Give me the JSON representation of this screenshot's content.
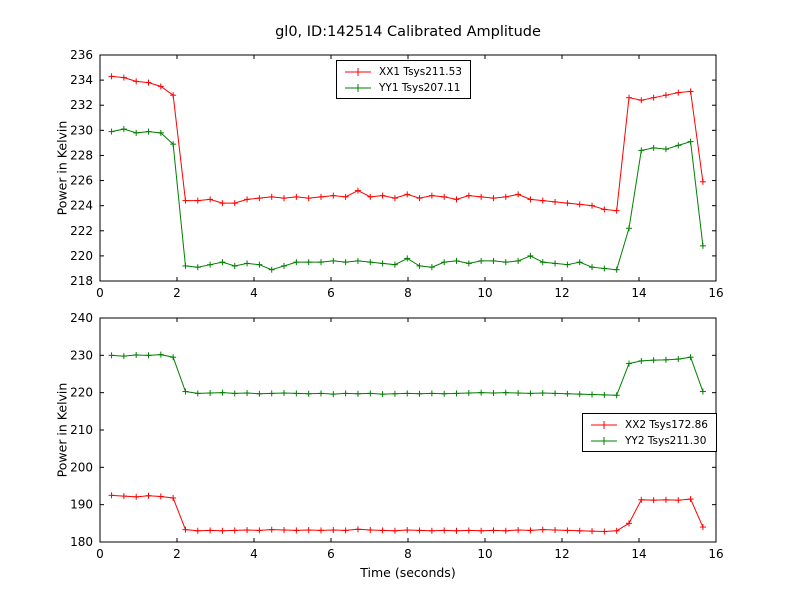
{
  "title": "gl0, ID:142514 Calibrated Amplitude",
  "colors": {
    "xx": "#ff0000",
    "yy": "#007f00",
    "axis": "#000000",
    "background": "#ffffff"
  },
  "chart_data": [
    {
      "type": "line",
      "subplot": "top",
      "ylabel": "Power in Kelvin",
      "xlabel": "",
      "xlim": [
        0,
        16
      ],
      "ylim": [
        218,
        236
      ],
      "xticks": [
        0,
        2,
        4,
        6,
        8,
        10,
        12,
        14,
        16
      ],
      "yticks": [
        218,
        220,
        222,
        224,
        226,
        228,
        230,
        232,
        234,
        236
      ],
      "legend_position": "upper center",
      "marker": "+",
      "grid": false,
      "x": [
        0.3,
        0.62,
        0.94,
        1.26,
        1.58,
        1.9,
        2.22,
        2.54,
        2.86,
        3.18,
        3.5,
        3.82,
        4.14,
        4.46,
        4.78,
        5.1,
        5.42,
        5.74,
        6.06,
        6.38,
        6.7,
        7.02,
        7.34,
        7.66,
        7.98,
        8.3,
        8.62,
        8.94,
        9.26,
        9.58,
        9.9,
        10.22,
        10.54,
        10.86,
        11.18,
        11.5,
        11.82,
        12.14,
        12.46,
        12.78,
        13.1,
        13.42,
        13.74,
        14.06,
        14.38,
        14.7,
        15.02,
        15.34,
        15.66
      ],
      "series": [
        {
          "name": "XX1 Tsys211.53",
          "color": "#ff0000",
          "values": [
            234.3,
            234.2,
            233.9,
            233.8,
            233.5,
            232.8,
            224.4,
            224.4,
            224.5,
            224.2,
            224.2,
            224.5,
            224.6,
            224.7,
            224.6,
            224.7,
            224.6,
            224.7,
            224.8,
            224.7,
            225.2,
            224.7,
            224.8,
            224.6,
            224.9,
            224.6,
            224.8,
            224.7,
            224.5,
            224.8,
            224.7,
            224.6,
            224.7,
            224.9,
            224.5,
            224.4,
            224.3,
            224.2,
            224.1,
            224.0,
            223.7,
            223.6,
            232.6,
            232.4,
            232.6,
            232.8,
            233.0,
            233.1,
            225.9
          ]
        },
        {
          "name": "YY1 Tsys207.11",
          "color": "#007f00",
          "values": [
            229.9,
            230.1,
            229.8,
            229.9,
            229.8,
            228.9,
            219.2,
            219.1,
            219.3,
            219.5,
            219.2,
            219.4,
            219.3,
            218.9,
            219.2,
            219.5,
            219.5,
            219.5,
            219.6,
            219.5,
            219.6,
            219.5,
            219.4,
            219.3,
            219.8,
            219.2,
            219.1,
            219.5,
            219.6,
            219.4,
            219.6,
            219.6,
            219.5,
            219.6,
            220.0,
            219.5,
            219.4,
            219.3,
            219.5,
            219.1,
            219.0,
            218.9,
            222.2,
            228.4,
            228.6,
            228.5,
            228.8,
            229.1,
            220.8
          ]
        }
      ]
    },
    {
      "type": "line",
      "subplot": "bottom",
      "ylabel": "Power in Kelvin",
      "xlabel": "Time (seconds)",
      "xlim": [
        0,
        16
      ],
      "ylim": [
        180,
        240
      ],
      "xticks": [
        0,
        2,
        4,
        6,
        8,
        10,
        12,
        14,
        16
      ],
      "yticks": [
        180,
        190,
        200,
        210,
        220,
        230,
        240
      ],
      "legend_position": "center right",
      "marker": "+",
      "grid": false,
      "x": [
        0.3,
        0.62,
        0.94,
        1.26,
        1.58,
        1.9,
        2.22,
        2.54,
        2.86,
        3.18,
        3.5,
        3.82,
        4.14,
        4.46,
        4.78,
        5.1,
        5.42,
        5.74,
        6.06,
        6.38,
        6.7,
        7.02,
        7.34,
        7.66,
        7.98,
        8.3,
        8.62,
        8.94,
        9.26,
        9.58,
        9.9,
        10.22,
        10.54,
        10.86,
        11.18,
        11.5,
        11.82,
        12.14,
        12.46,
        12.78,
        13.1,
        13.42,
        13.74,
        14.06,
        14.38,
        14.7,
        15.02,
        15.34,
        15.66
      ],
      "series": [
        {
          "name": "XX2 Tsys172.86",
          "color": "#ff0000",
          "values": [
            192.5,
            192.3,
            192.1,
            192.4,
            192.2,
            191.8,
            183.3,
            183.0,
            183.1,
            183.0,
            183.1,
            183.2,
            183.1,
            183.3,
            183.2,
            183.1,
            183.2,
            183.1,
            183.2,
            183.1,
            183.4,
            183.2,
            183.1,
            183.0,
            183.2,
            183.1,
            183.0,
            183.1,
            183.0,
            183.1,
            183.0,
            183.1,
            183.0,
            183.2,
            183.1,
            183.3,
            183.2,
            183.1,
            183.0,
            182.9,
            182.8,
            183.0,
            185.0,
            191.3,
            191.2,
            191.3,
            191.2,
            191.5,
            184.0
          ]
        },
        {
          "name": "YY2 Tsys211.30",
          "color": "#007f00",
          "values": [
            230.0,
            229.8,
            230.1,
            230.0,
            230.2,
            229.5,
            220.3,
            219.8,
            219.9,
            220.0,
            219.8,
            219.9,
            219.7,
            219.8,
            219.9,
            219.8,
            219.7,
            219.8,
            219.6,
            219.8,
            219.7,
            219.8,
            219.6,
            219.7,
            219.8,
            219.7,
            219.8,
            219.7,
            219.8,
            219.9,
            220.0,
            219.9,
            220.0,
            219.9,
            219.8,
            219.9,
            219.8,
            219.7,
            219.6,
            219.5,
            219.4,
            219.3,
            227.8,
            228.5,
            228.7,
            228.8,
            229.0,
            229.5,
            220.3
          ]
        }
      ]
    }
  ]
}
